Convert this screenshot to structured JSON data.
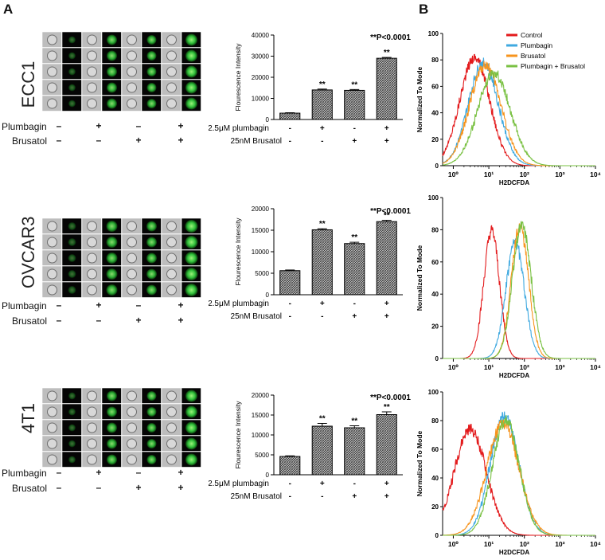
{
  "panels": {
    "a": "A",
    "b": "B"
  },
  "rows": [
    {
      "cell_line": "ECC1"
    },
    {
      "cell_line": "OVCAR3"
    },
    {
      "cell_line": "4T1"
    }
  ],
  "image_treatments": {
    "plumbagin_label": "Plumbagin",
    "brusatol_label": "Brusatol",
    "plumbagin_signs": [
      "–",
      "+",
      "–",
      "+"
    ],
    "brusatol_signs": [
      "–",
      "–",
      "+",
      "+"
    ]
  },
  "colors": {
    "bar_fill": "#555555",
    "control": "#e31a1c",
    "plumbagin": "#3fa9e0",
    "brusatol": "#f7941d",
    "combo": "#7ac143",
    "cell_green": "#2fbf3a"
  },
  "chart_data": [
    {
      "type": "bar",
      "title": "",
      "ylabel": "Flourescence Intensity",
      "ylim": [
        0,
        40000
      ],
      "yticks": [
        0,
        10000,
        20000,
        30000,
        40000
      ],
      "categories": [
        "Control",
        "Plumbagin",
        "Brusatol",
        "Plumbagin + Brusatol"
      ],
      "values": [
        3000,
        14000,
        13800,
        29000
      ],
      "errors": [
        200,
        400,
        400,
        400
      ],
      "sig_labels": [
        "",
        "**",
        "**",
        "**"
      ],
      "pvalue": "**P<0.0001",
      "row1_label": "2.5μM plumbagin",
      "row2_label": "25nM Brusatol",
      "row1_signs": [
        "-",
        "+",
        "-",
        "+"
      ],
      "row2_signs": [
        "-",
        "-",
        "+",
        "+"
      ]
    },
    {
      "type": "bar",
      "title": "",
      "ylabel": "Flourescence Intensity",
      "ylim": [
        0,
        20000
      ],
      "yticks": [
        0,
        5000,
        10000,
        15000,
        20000
      ],
      "categories": [
        "Control",
        "Plumbagin",
        "Brusatol",
        "Plumbagin + Brusatol"
      ],
      "values": [
        5600,
        15100,
        11900,
        17000
      ],
      "errors": [
        150,
        250,
        300,
        300
      ],
      "sig_labels": [
        "",
        "**",
        "**",
        "**"
      ],
      "pvalue": "**P<0.0001",
      "row1_label": "2.5μM plumbagin",
      "row2_label": "25nM Brusatol",
      "row1_signs": [
        "-",
        "+",
        "-",
        "+"
      ],
      "row2_signs": [
        "-",
        "-",
        "+",
        "+"
      ]
    },
    {
      "type": "bar",
      "title": "",
      "ylabel": "Flourescence Intensity",
      "ylim": [
        0,
        20000
      ],
      "yticks": [
        0,
        5000,
        10000,
        15000,
        20000
      ],
      "categories": [
        "Control",
        "Plumbagin",
        "Brusatol",
        "Plumbagin + Brusatol"
      ],
      "values": [
        4600,
        12200,
        11800,
        15100
      ],
      "errors": [
        150,
        700,
        500,
        700
      ],
      "sig_labels": [
        "",
        "**",
        "**",
        "**"
      ],
      "pvalue": "**P<0.0001",
      "row1_label": "2.5μM plumbagin",
      "row2_label": "25nM Brusatol",
      "row1_signs": [
        "-",
        "+",
        "-",
        "+"
      ],
      "row2_signs": [
        "-",
        "-",
        "+",
        "+"
      ]
    },
    {
      "type": "line",
      "xlabel": "H2DCFDA",
      "ylabel": "Normalized To Mode",
      "xscale": "log",
      "xlim": [
        0.5,
        10000
      ],
      "ylim": [
        0,
        100
      ],
      "xtick_labels": [
        "10⁰",
        "10¹",
        "10²",
        "10³",
        "10⁴"
      ],
      "yticks": [
        0,
        20,
        40,
        60,
        80,
        100
      ],
      "legend": [
        "Control",
        "Plumbagin",
        "Brusatol",
        "Plumbagin + Brusatol"
      ],
      "series": [
        {
          "name": "Control",
          "color": "#e31a1c",
          "peak_x": 4,
          "peak_y": 82,
          "width": 0.42
        },
        {
          "name": "Plumbagin",
          "color": "#3fa9e0",
          "peak_x": 7,
          "peak_y": 78,
          "width": 0.42
        },
        {
          "name": "Brusatol",
          "color": "#f7941d",
          "peak_x": 8,
          "peak_y": 76,
          "width": 0.44
        },
        {
          "name": "Plumbagin + Brusatol",
          "color": "#7ac143",
          "peak_x": 14,
          "peak_y": 70,
          "width": 0.46
        }
      ]
    },
    {
      "type": "line",
      "xlabel": "H2DCFDA",
      "ylabel": "Normalized To Mode",
      "xscale": "log",
      "xlim": [
        0.5,
        10000
      ],
      "ylim": [
        0,
        100
      ],
      "xtick_labels": [
        "10⁰",
        "10¹",
        "10²",
        "10³",
        "10⁴"
      ],
      "yticks": [
        0,
        20,
        40,
        60,
        80,
        100
      ],
      "series": [
        {
          "name": "Control",
          "color": "#e31a1c",
          "peak_x": 12,
          "peak_y": 79,
          "width": 0.22
        },
        {
          "name": "Plumbagin",
          "color": "#3fa9e0",
          "peak_x": 55,
          "peak_y": 72,
          "width": 0.26
        },
        {
          "name": "Brusatol",
          "color": "#f7941d",
          "peak_x": 75,
          "peak_y": 82,
          "width": 0.24
        },
        {
          "name": "Plumbagin + Brusatol",
          "color": "#7ac143",
          "peak_x": 85,
          "peak_y": 83,
          "width": 0.26
        }
      ]
    },
    {
      "type": "line",
      "xlabel": "H2DCFDA",
      "ylabel": "Normalized To Mode",
      "xscale": "log",
      "xlim": [
        0.5,
        10000
      ],
      "ylim": [
        0,
        100
      ],
      "xtick_labels": [
        "10⁰",
        "10¹",
        "10²",
        "10³",
        "10⁴"
      ],
      "yticks": [
        0,
        20,
        40,
        60,
        80,
        100
      ],
      "series": [
        {
          "name": "Control",
          "color": "#e31a1c",
          "peak_x": 3,
          "peak_y": 74,
          "width": 0.45
        },
        {
          "name": "Plumbagin",
          "color": "#3fa9e0",
          "peak_x": 28,
          "peak_y": 83,
          "width": 0.4
        },
        {
          "name": "Brusatol",
          "color": "#f7941d",
          "peak_x": 25,
          "peak_y": 78,
          "width": 0.45
        },
        {
          "name": "Plumbagin + Brusatol",
          "color": "#7ac143",
          "peak_x": 30,
          "peak_y": 80,
          "width": 0.38
        }
      ]
    }
  ]
}
